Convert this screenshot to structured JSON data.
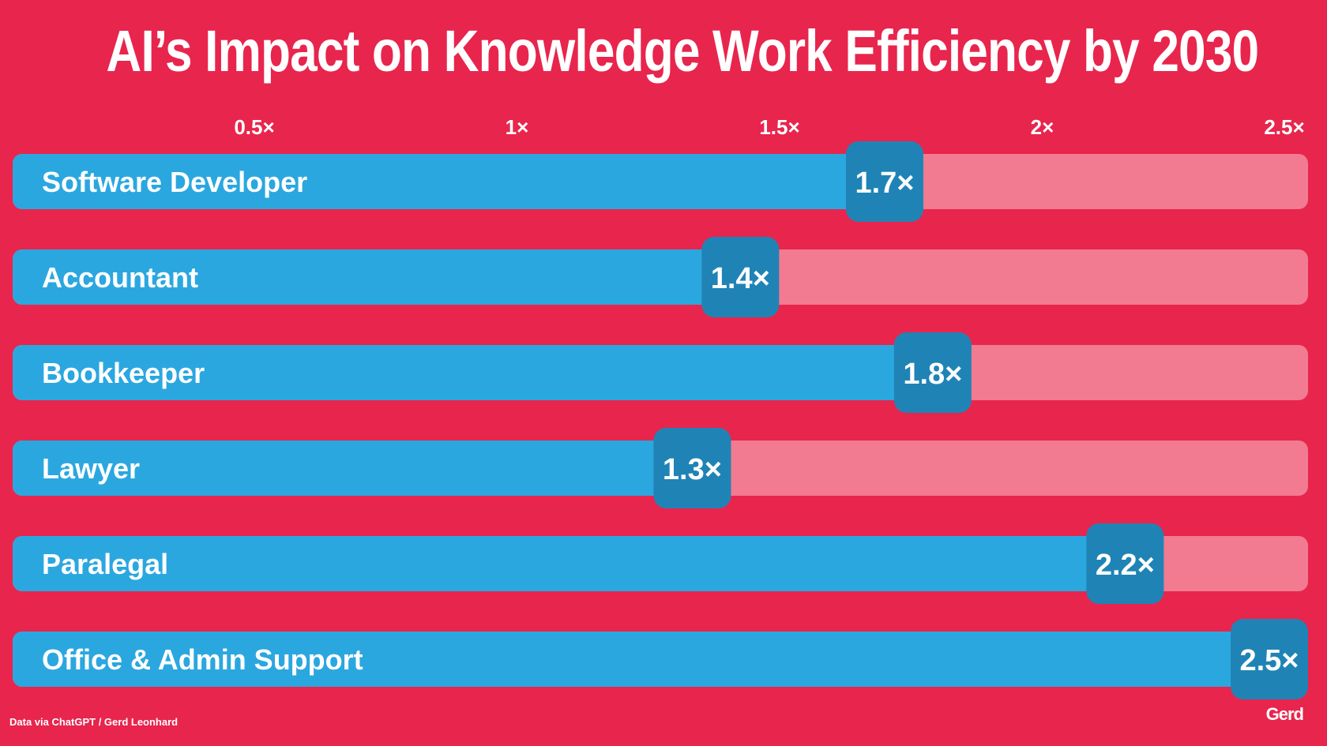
{
  "header": {
    "title": "AI’s Impact on Knowledge Work Efficiency by 2030"
  },
  "chart_data": {
    "type": "bar",
    "orientation": "horizontal",
    "title": "AI’s Impact on Knowledge Work Efficiency by 2030",
    "xlabel": "",
    "ylabel": "",
    "xlim": [
      0,
      2.5
    ],
    "xticks": [
      0.5,
      1,
      1.5,
      2,
      2.5
    ],
    "xtick_labels": [
      "0.5×",
      "1×",
      "1.5×",
      "2×",
      "2.5×"
    ],
    "categories": [
      "Software Developer",
      "Accountant",
      "Bookkeeper",
      "Lawyer",
      "Paralegal",
      "Office & Admin Support"
    ],
    "values": [
      1.7,
      1.4,
      1.8,
      1.3,
      2.2,
      2.5
    ],
    "value_labels": [
      "1.7×",
      "1.4×",
      "1.8×",
      "1.3×",
      "2.2×",
      "2.5×"
    ],
    "grid": false,
    "legend": "none"
  },
  "colors": {
    "background": "#E8254D",
    "bar_fill": "#2BA7E0",
    "bar_track": "#F27A91",
    "value_badge": "#1F84B5",
    "text": "#FFFFFF"
  },
  "footer": {
    "source": "Data via ChatGPT / Gerd Leonhard",
    "logo": "Gerd"
  }
}
